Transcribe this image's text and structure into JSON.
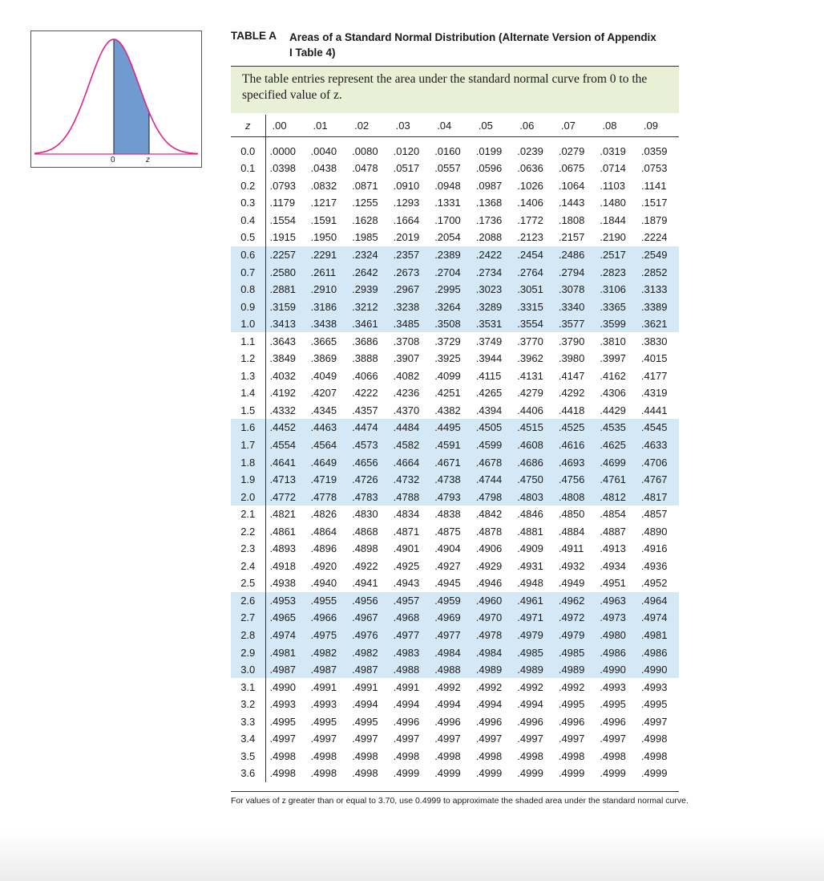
{
  "figure": {
    "zero_label": "0",
    "z_label": "z",
    "colors": {
      "curve": "#e0248a",
      "shade": "#6f9bd1",
      "box_border": "#555555"
    }
  },
  "title": {
    "id": "TABLE A",
    "text": "Areas of a Standard Normal Distribution (Alternate Version of Appendix I Table 4)"
  },
  "description": "The table entries represent the area under the standard normal curve from 0 to the specified value of z.",
  "table": {
    "headers": [
      "z",
      ".00",
      ".01",
      ".02",
      ".03",
      ".04",
      ".05",
      ".06",
      ".07",
      ".08",
      ".09"
    ],
    "shade_color": "#d4e8f5",
    "header_bg": "#eaf0d6",
    "rows": [
      {
        "z": "0.0",
        "shaded": false,
        "values": [
          ".0000",
          ".0040",
          ".0080",
          ".0120",
          ".0160",
          ".0199",
          ".0239",
          ".0279",
          ".0319",
          ".0359"
        ]
      },
      {
        "z": "0.1",
        "shaded": false,
        "values": [
          ".0398",
          ".0438",
          ".0478",
          ".0517",
          ".0557",
          ".0596",
          ".0636",
          ".0675",
          ".0714",
          ".0753"
        ]
      },
      {
        "z": "0.2",
        "shaded": false,
        "values": [
          ".0793",
          ".0832",
          ".0871",
          ".0910",
          ".0948",
          ".0987",
          ".1026",
          ".1064",
          ".1103",
          ".1141"
        ]
      },
      {
        "z": "0.3",
        "shaded": false,
        "values": [
          ".1179",
          ".1217",
          ".1255",
          ".1293",
          ".1331",
          ".1368",
          ".1406",
          ".1443",
          ".1480",
          ".1517"
        ]
      },
      {
        "z": "0.4",
        "shaded": false,
        "values": [
          ".1554",
          ".1591",
          ".1628",
          ".1664",
          ".1700",
          ".1736",
          ".1772",
          ".1808",
          ".1844",
          ".1879"
        ]
      },
      {
        "z": "0.5",
        "shaded": false,
        "values": [
          ".1915",
          ".1950",
          ".1985",
          ".2019",
          ".2054",
          ".2088",
          ".2123",
          ".2157",
          ".2190",
          ".2224"
        ]
      },
      {
        "z": "0.6",
        "shaded": true,
        "values": [
          ".2257",
          ".2291",
          ".2324",
          ".2357",
          ".2389",
          ".2422",
          ".2454",
          ".2486",
          ".2517",
          ".2549"
        ]
      },
      {
        "z": "0.7",
        "shaded": true,
        "values": [
          ".2580",
          ".2611",
          ".2642",
          ".2673",
          ".2704",
          ".2734",
          ".2764",
          ".2794",
          ".2823",
          ".2852"
        ]
      },
      {
        "z": "0.8",
        "shaded": true,
        "values": [
          ".2881",
          ".2910",
          ".2939",
          ".2967",
          ".2995",
          ".3023",
          ".3051",
          ".3078",
          ".3106",
          ".3133"
        ]
      },
      {
        "z": "0.9",
        "shaded": true,
        "values": [
          ".3159",
          ".3186",
          ".3212",
          ".3238",
          ".3264",
          ".3289",
          ".3315",
          ".3340",
          ".3365",
          ".3389"
        ]
      },
      {
        "z": "1.0",
        "shaded": true,
        "values": [
          ".3413",
          ".3438",
          ".3461",
          ".3485",
          ".3508",
          ".3531",
          ".3554",
          ".3577",
          ".3599",
          ".3621"
        ]
      },
      {
        "z": "1.1",
        "shaded": false,
        "values": [
          ".3643",
          ".3665",
          ".3686",
          ".3708",
          ".3729",
          ".3749",
          ".3770",
          ".3790",
          ".3810",
          ".3830"
        ]
      },
      {
        "z": "1.2",
        "shaded": false,
        "values": [
          ".3849",
          ".3869",
          ".3888",
          ".3907",
          ".3925",
          ".3944",
          ".3962",
          ".3980",
          ".3997",
          ".4015"
        ]
      },
      {
        "z": "1.3",
        "shaded": false,
        "values": [
          ".4032",
          ".4049",
          ".4066",
          ".4082",
          ".4099",
          ".4115",
          ".4131",
          ".4147",
          ".4162",
          ".4177"
        ]
      },
      {
        "z": "1.4",
        "shaded": false,
        "values": [
          ".4192",
          ".4207",
          ".4222",
          ".4236",
          ".4251",
          ".4265",
          ".4279",
          ".4292",
          ".4306",
          ".4319"
        ]
      },
      {
        "z": "1.5",
        "shaded": false,
        "values": [
          ".4332",
          ".4345",
          ".4357",
          ".4370",
          ".4382",
          ".4394",
          ".4406",
          ".4418",
          ".4429",
          ".4441"
        ]
      },
      {
        "z": "1.6",
        "shaded": true,
        "values": [
          ".4452",
          ".4463",
          ".4474",
          ".4484",
          ".4495",
          ".4505",
          ".4515",
          ".4525",
          ".4535",
          ".4545"
        ]
      },
      {
        "z": "1.7",
        "shaded": true,
        "values": [
          ".4554",
          ".4564",
          ".4573",
          ".4582",
          ".4591",
          ".4599",
          ".4608",
          ".4616",
          ".4625",
          ".4633"
        ]
      },
      {
        "z": "1.8",
        "shaded": true,
        "values": [
          ".4641",
          ".4649",
          ".4656",
          ".4664",
          ".4671",
          ".4678",
          ".4686",
          ".4693",
          ".4699",
          ".4706"
        ]
      },
      {
        "z": "1.9",
        "shaded": true,
        "values": [
          ".4713",
          ".4719",
          ".4726",
          ".4732",
          ".4738",
          ".4744",
          ".4750",
          ".4756",
          ".4761",
          ".4767"
        ]
      },
      {
        "z": "2.0",
        "shaded": true,
        "values": [
          ".4772",
          ".4778",
          ".4783",
          ".4788",
          ".4793",
          ".4798",
          ".4803",
          ".4808",
          ".4812",
          ".4817"
        ]
      },
      {
        "z": "2.1",
        "shaded": false,
        "values": [
          ".4821",
          ".4826",
          ".4830",
          ".4834",
          ".4838",
          ".4842",
          ".4846",
          ".4850",
          ".4854",
          ".4857"
        ]
      },
      {
        "z": "2.2",
        "shaded": false,
        "values": [
          ".4861",
          ".4864",
          ".4868",
          ".4871",
          ".4875",
          ".4878",
          ".4881",
          ".4884",
          ".4887",
          ".4890"
        ]
      },
      {
        "z": "2.3",
        "shaded": false,
        "values": [
          ".4893",
          ".4896",
          ".4898",
          ".4901",
          ".4904",
          ".4906",
          ".4909",
          ".4911",
          ".4913",
          ".4916"
        ]
      },
      {
        "z": "2.4",
        "shaded": false,
        "values": [
          ".4918",
          ".4920",
          ".4922",
          ".4925",
          ".4927",
          ".4929",
          ".4931",
          ".4932",
          ".4934",
          ".4936"
        ]
      },
      {
        "z": "2.5",
        "shaded": false,
        "values": [
          ".4938",
          ".4940",
          ".4941",
          ".4943",
          ".4945",
          ".4946",
          ".4948",
          ".4949",
          ".4951",
          ".4952"
        ]
      },
      {
        "z": "2.6",
        "shaded": true,
        "values": [
          ".4953",
          ".4955",
          ".4956",
          ".4957",
          ".4959",
          ".4960",
          ".4961",
          ".4962",
          ".4963",
          ".4964"
        ]
      },
      {
        "z": "2.7",
        "shaded": true,
        "values": [
          ".4965",
          ".4966",
          ".4967",
          ".4968",
          ".4969",
          ".4970",
          ".4971",
          ".4972",
          ".4973",
          ".4974"
        ]
      },
      {
        "z": "2.8",
        "shaded": true,
        "values": [
          ".4974",
          ".4975",
          ".4976",
          ".4977",
          ".4977",
          ".4978",
          ".4979",
          ".4979",
          ".4980",
          ".4981"
        ]
      },
      {
        "z": "2.9",
        "shaded": true,
        "values": [
          ".4981",
          ".4982",
          ".4982",
          ".4983",
          ".4984",
          ".4984",
          ".4985",
          ".4985",
          ".4986",
          ".4986"
        ]
      },
      {
        "z": "3.0",
        "shaded": true,
        "values": [
          ".4987",
          ".4987",
          ".4987",
          ".4988",
          ".4988",
          ".4989",
          ".4989",
          ".4989",
          ".4990",
          ".4990"
        ]
      },
      {
        "z": "3.1",
        "shaded": false,
        "values": [
          ".4990",
          ".4991",
          ".4991",
          ".4991",
          ".4992",
          ".4992",
          ".4992",
          ".4992",
          ".4993",
          ".4993"
        ]
      },
      {
        "z": "3.2",
        "shaded": false,
        "values": [
          ".4993",
          ".4993",
          ".4994",
          ".4994",
          ".4994",
          ".4994",
          ".4994",
          ".4995",
          ".4995",
          ".4995"
        ]
      },
      {
        "z": "3.3",
        "shaded": false,
        "values": [
          ".4995",
          ".4995",
          ".4995",
          ".4996",
          ".4996",
          ".4996",
          ".4996",
          ".4996",
          ".4996",
          ".4997"
        ]
      },
      {
        "z": "3.4",
        "shaded": false,
        "values": [
          ".4997",
          ".4997",
          ".4997",
          ".4997",
          ".4997",
          ".4997",
          ".4997",
          ".4997",
          ".4997",
          ".4998"
        ]
      },
      {
        "z": "3.5",
        "shaded": false,
        "values": [
          ".4998",
          ".4998",
          ".4998",
          ".4998",
          ".4998",
          ".4998",
          ".4998",
          ".4998",
          ".4998",
          ".4998"
        ]
      },
      {
        "z": "3.6",
        "shaded": false,
        "values": [
          ".4998",
          ".4998",
          ".4998",
          ".4999",
          ".4999",
          ".4999",
          ".4999",
          ".4999",
          ".4999",
          ".4999"
        ]
      }
    ]
  },
  "footnote": "For values of z greater than or equal to 3.70, use 0.4999 to approximate the shaded area under the standard normal curve."
}
